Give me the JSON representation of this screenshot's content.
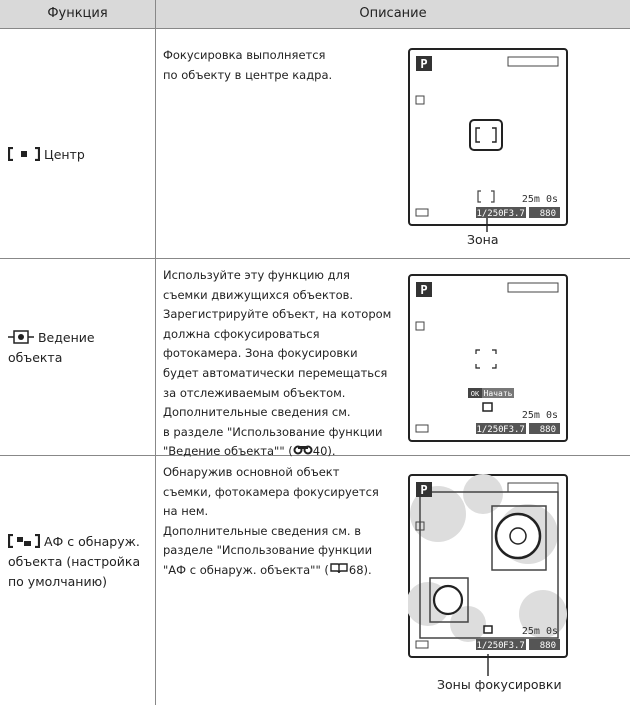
{
  "header": {
    "function": "Функция",
    "description": "Описание"
  },
  "rows": [
    {
      "function": [
        "Центр"
      ],
      "description": [
        "Фокусировка выполняется",
        "по объекту в центре кадра."
      ],
      "screen": {
        "mode": "P",
        "shutter": "1/250",
        "aperture": "F3.7",
        "time": "25m 0s",
        "shots": "880"
      },
      "callout": "Зона"
    },
    {
      "function": [
        "Ведение",
        "объекта"
      ],
      "description": [
        "Используйте эту функцию для",
        "съемки движущихся объектов.",
        "Зарегистрируйте объект, на котором",
        "должна сфокусироваться",
        "фотокамера. Зона фокусировки",
        "будет автоматически перемещаться",
        "за отслеживаемым объектом.",
        "Дополнительные сведения см.",
        "в разделе \"Использование функции"
      ],
      "description_last": {
        "before": "\"Ведение объекта\"\" (",
        "after": "40)."
      },
      "screen": {
        "mode": "P",
        "ok": "OK",
        "start": "Начать",
        "shutter": "1/250",
        "aperture": "F3.7",
        "time": "25m 0s",
        "shots": "880"
      }
    },
    {
      "function": [
        "АФ с обнаруж.",
        "объекта (настройка",
        "по умолчанию)"
      ],
      "description": [
        "Обнаружив основной объект",
        "съемки, фотокамера фокусируется",
        "на нем.",
        "Дополнительные сведения см. в",
        "разделе \"Использование функции"
      ],
      "description_last": {
        "before": "\"АФ с обнаруж. объекта\"\" (",
        "after": "68)."
      },
      "screen": {
        "mode": "P",
        "shutter": "1/250",
        "aperture": "F3.7",
        "time": "25m 0s",
        "shots": "880"
      },
      "callout": "Зоны фокусировки"
    }
  ]
}
